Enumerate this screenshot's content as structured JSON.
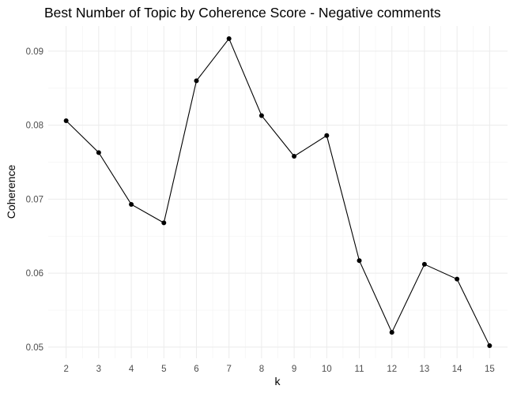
{
  "chart_data": {
    "type": "line",
    "title": "Best Number of Topic by Coherence Score - Negative comments",
    "xlabel": "k",
    "ylabel": "Coherence",
    "x": [
      2,
      3,
      4,
      5,
      6,
      7,
      8,
      9,
      10,
      11,
      12,
      13,
      14,
      15
    ],
    "y": [
      0.0806,
      0.0763,
      0.0693,
      0.0668,
      0.086,
      0.0917,
      0.0813,
      0.0758,
      0.0786,
      0.0617,
      0.052,
      0.0612,
      0.0592,
      0.0502
    ],
    "xlim": [
      1.45,
      15.55
    ],
    "ylim": [
      0.0485,
      0.0934
    ],
    "x_ticks": [
      "2",
      "3",
      "4",
      "5",
      "6",
      "7",
      "8",
      "9",
      "10",
      "11",
      "12",
      "13",
      "14",
      "15"
    ],
    "y_ticks": [
      "0.05",
      "0.06",
      "0.07",
      "0.08",
      "0.09"
    ],
    "grid": true,
    "marker": "point",
    "line_color": "#000000"
  }
}
